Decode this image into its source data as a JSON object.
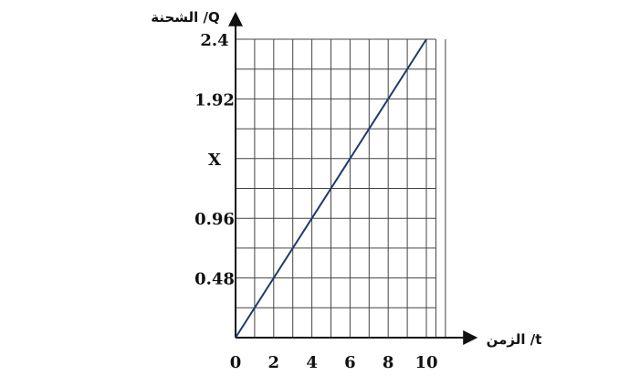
{
  "chart_data": {
    "type": "line",
    "xlabel": "الزمن /t",
    "ylabel": "الشحنة /Q",
    "xlim": [
      0,
      10.5
    ],
    "ylim": [
      0,
      2.4
    ],
    "x_ticks": [
      {
        "value": 0,
        "label": "0"
      },
      {
        "value": 2,
        "label": "2"
      },
      {
        "value": 4,
        "label": "4"
      },
      {
        "value": 6,
        "label": "6"
      },
      {
        "value": 8,
        "label": "8"
      },
      {
        "value": 10,
        "label": "10"
      }
    ],
    "y_ticks": [
      {
        "value": 0.48,
        "label": "0.48"
      },
      {
        "value": 0.96,
        "label": "0.96"
      },
      {
        "value": 1.44,
        "label": "X"
      },
      {
        "value": 1.92,
        "label": "1.92"
      },
      {
        "value": 2.4,
        "label": "2.4"
      }
    ],
    "grid": true,
    "grid_x_step": 1,
    "grid_y_step": 0.24,
    "series": [
      {
        "x": [
          0,
          10
        ],
        "y": [
          0,
          2.4
        ]
      }
    ],
    "colors": {
      "line": "#1f3a6b",
      "grid": "#444444",
      "axis": "#111111"
    }
  }
}
